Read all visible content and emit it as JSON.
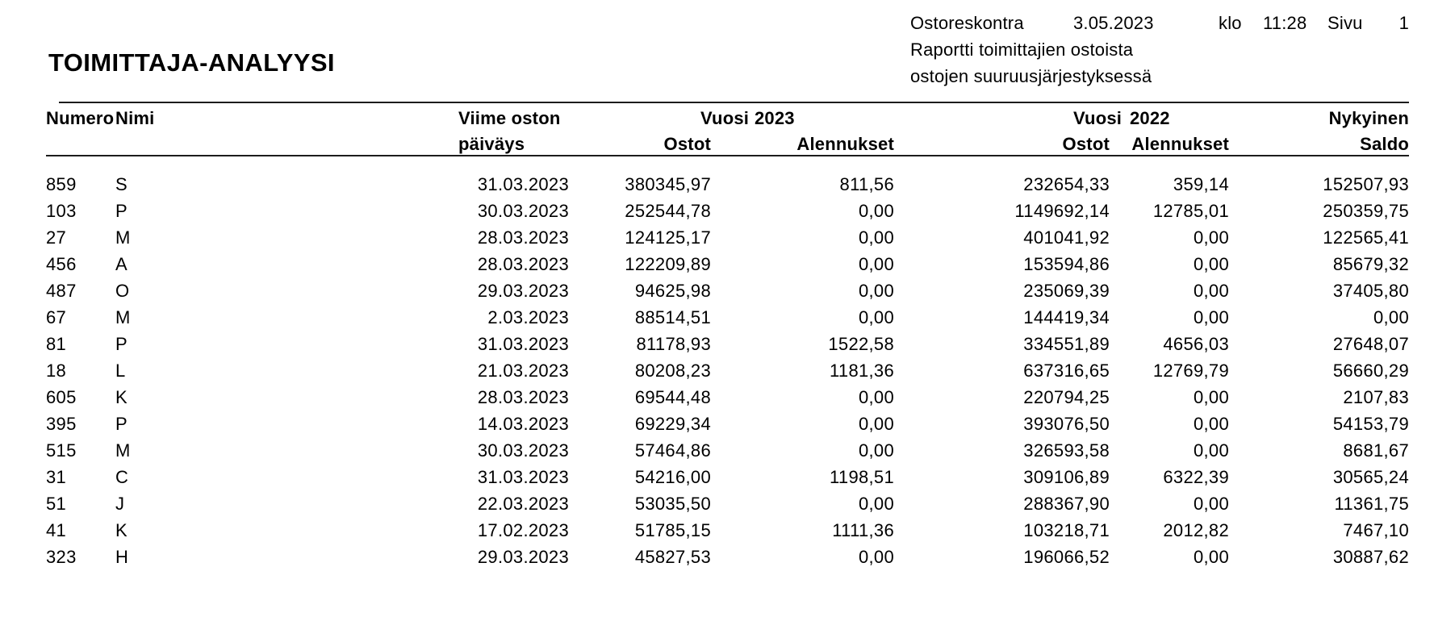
{
  "page_header": {
    "module": "Ostoreskontra",
    "date": "3.05.2023",
    "time_label": "klo",
    "time": "11:28",
    "page_label": "Sivu",
    "page_number": "1",
    "subtitle1": "Raportti toimittajien ostoista",
    "subtitle2": "ostojen suuruusjärjestyksessä"
  },
  "report": {
    "title": "TOIMITTAJA-ANALYYSI",
    "columns": {
      "numero": "Numero",
      "nimi": "Nimi",
      "viime_oston": "Viime oston",
      "paivays": "päiväys",
      "vuosi_label": "Vuosi",
      "year_2023": "2023",
      "year_2022": "2022",
      "ostot": "Ostot",
      "alennukset": "Alennukset",
      "nykyinen": "Nykyinen",
      "saldo": "Saldo"
    },
    "rows": [
      [
        "859",
        "S",
        "31.03.2023",
        "380345,97",
        "811,56",
        "232654,33",
        "359,14",
        "152507,93"
      ],
      [
        "103",
        "P",
        "30.03.2023",
        "252544,78",
        "0,00",
        "1149692,14",
        "12785,01",
        "250359,75"
      ],
      [
        "27",
        "M",
        "28.03.2023",
        "124125,17",
        "0,00",
        "401041,92",
        "0,00",
        "122565,41"
      ],
      [
        "456",
        "A",
        "28.03.2023",
        "122209,89",
        "0,00",
        "153594,86",
        "0,00",
        "85679,32"
      ],
      [
        "487",
        "O",
        "29.03.2023",
        "94625,98",
        "0,00",
        "235069,39",
        "0,00",
        "37405,80"
      ],
      [
        "67",
        "M",
        "2.03.2023",
        "88514,51",
        "0,00",
        "144419,34",
        "0,00",
        "0,00"
      ],
      [
        "81",
        "P",
        "31.03.2023",
        "81178,93",
        "1522,58",
        "334551,89",
        "4656,03",
        "27648,07"
      ],
      [
        "18",
        "L",
        "21.03.2023",
        "80208,23",
        "1181,36",
        "637316,65",
        "12769,79",
        "56660,29"
      ],
      [
        "605",
        "K",
        "28.03.2023",
        "69544,48",
        "0,00",
        "220794,25",
        "0,00",
        "2107,83"
      ],
      [
        "395",
        "P",
        "14.03.2023",
        "69229,34",
        "0,00",
        "393076,50",
        "0,00",
        "54153,79"
      ],
      [
        "515",
        "M",
        "30.03.2023",
        "57464,86",
        "0,00",
        "326593,58",
        "0,00",
        "8681,67"
      ],
      [
        "31",
        "C",
        "31.03.2023",
        "54216,00",
        "1198,51",
        "309106,89",
        "6322,39",
        "30565,24"
      ],
      [
        "51",
        "J",
        "22.03.2023",
        "53035,50",
        "0,00",
        "288367,90",
        "0,00",
        "11361,75"
      ],
      [
        "41",
        "K",
        "17.02.2023",
        "51785,15",
        "1111,36",
        "103218,71",
        "2012,82",
        "7467,10"
      ],
      [
        "323",
        "H",
        "29.03.2023",
        "45827,53",
        "0,00",
        "196066,52",
        "0,00",
        "30887,62"
      ]
    ]
  }
}
